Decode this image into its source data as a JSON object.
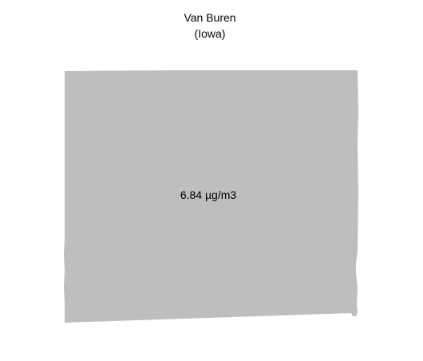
{
  "map": {
    "title": "Van Buren",
    "subtitle": "(Iowa)",
    "value_label": "6.84 µg/m3",
    "fill_color": "#bebebe",
    "background_color": "#ffffff"
  }
}
